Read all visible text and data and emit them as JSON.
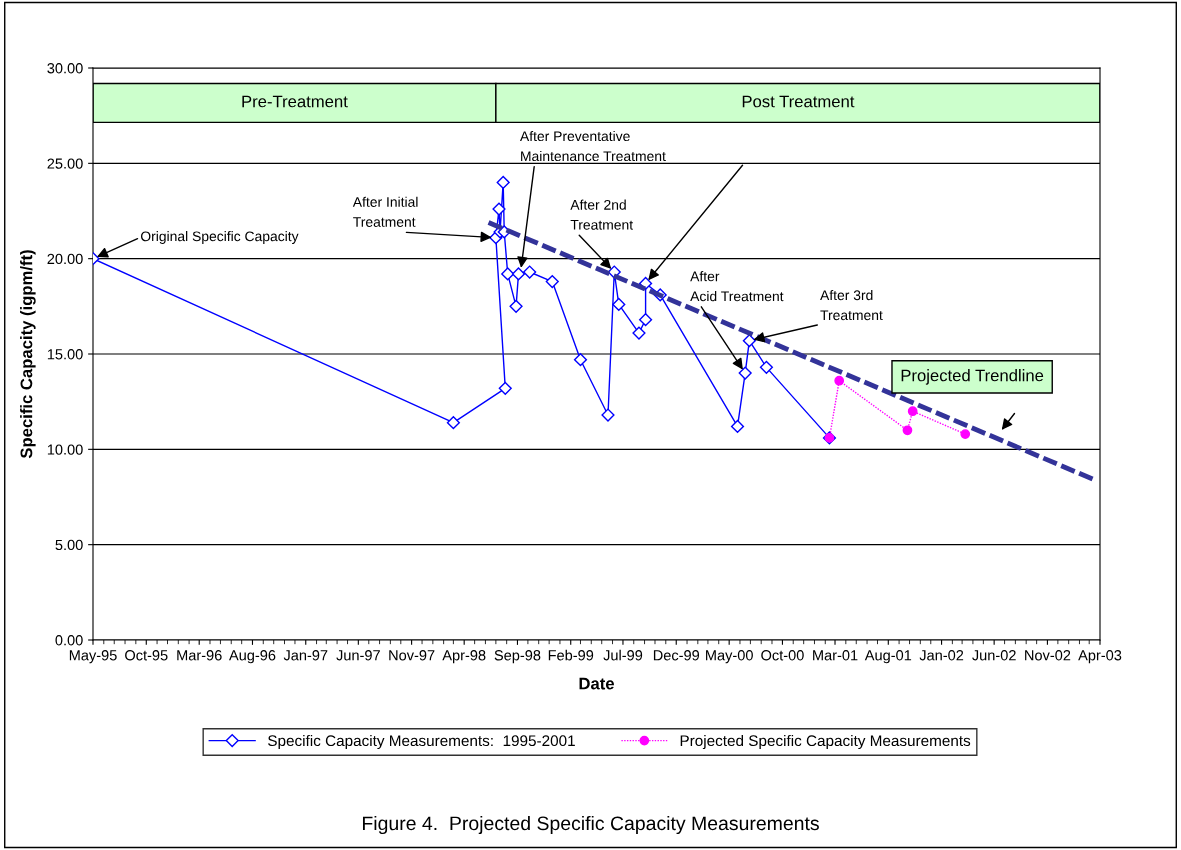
{
  "chart_data": {
    "type": "line",
    "xlabel": "Date",
    "ylabel": "Specific Capacity (igpm/ft)",
    "xlim": [
      "1995-05-01",
      "2003-04-01"
    ],
    "xticks": [
      {
        "value": "1995-05",
        "label": "May-95"
      },
      {
        "value": "1995-10",
        "label": "Oct-95"
      },
      {
        "value": "1996-03",
        "label": "Mar-96"
      },
      {
        "value": "1996-08",
        "label": "Aug-96"
      },
      {
        "value": "1997-01",
        "label": "Jan-97"
      },
      {
        "value": "1997-06",
        "label": "Jun-97"
      },
      {
        "value": "1997-11",
        "label": "Nov-97"
      },
      {
        "value": "1998-04",
        "label": "Apr-98"
      },
      {
        "value": "1998-09",
        "label": "Sep-98"
      },
      {
        "value": "1999-02",
        "label": "Feb-99"
      },
      {
        "value": "1999-07",
        "label": "Jul-99"
      },
      {
        "value": "1999-12",
        "label": "Dec-99"
      },
      {
        "value": "2000-05",
        "label": "May-00"
      },
      {
        "value": "2000-10",
        "label": "Oct-00"
      },
      {
        "value": "2001-03",
        "label": "Mar-01"
      },
      {
        "value": "2001-08",
        "label": "Aug-01"
      },
      {
        "value": "2002-01",
        "label": "Jan-02"
      },
      {
        "value": "2002-06",
        "label": "Jun-02"
      },
      {
        "value": "2002-11",
        "label": "Nov-02"
      },
      {
        "value": "2003-04",
        "label": "Apr-03"
      }
    ],
    "ylim": [
      0,
      30
    ],
    "yticks": [
      {
        "value": 0,
        "label": "0.00"
      },
      {
        "value": 5,
        "label": "5.00"
      },
      {
        "value": 10,
        "label": "10.00"
      },
      {
        "value": 15,
        "label": "15.00"
      },
      {
        "value": 20,
        "label": "20.00"
      },
      {
        "value": 25,
        "label": "25.00"
      },
      {
        "value": 30,
        "label": "30.00"
      }
    ],
    "grid": "y",
    "legend": "bottom",
    "series": [
      {
        "name": "Specific Capacity Measurements:  1995-2001",
        "color": "#0000ff",
        "marker": "diamond",
        "line_style": "solid",
        "x": [
          "1995-05-01",
          "1998-03-01",
          "1998-07-28",
          "1998-07-01",
          "1998-07-10",
          "1998-07-13",
          "1998-07-22",
          "1998-07-25",
          "1998-08-04",
          "1998-08-28",
          "1998-09-04",
          "1998-10-06",
          "1998-12-10",
          "1999-03-01",
          "1999-05-19",
          "1999-06-06",
          "1999-06-19",
          "1999-08-16",
          "1999-09-04",
          "1999-09-04",
          "1999-10-16",
          "2000-05-25",
          "2000-06-16",
          "2000-06-28",
          "2000-08-16",
          "2001-02-13"
        ],
        "values": [
          20.0,
          11.4,
          13.2,
          21.1,
          22.6,
          21.4,
          24.0,
          21.4,
          19.2,
          17.5,
          19.2,
          19.3,
          18.8,
          14.7,
          11.8,
          19.3,
          17.6,
          16.1,
          16.8,
          18.7,
          18.1,
          11.2,
          14.0,
          15.7,
          14.3,
          10.6
        ]
      },
      {
        "name": "Projected Specific Capacity Measurements",
        "color": "#ff00ff",
        "marker": "circle",
        "line_style": "dotted",
        "x": [
          "2001-02-13",
          "2001-03-13",
          "2001-09-25",
          "2001-10-10",
          "2002-03-10"
        ],
        "values": [
          10.6,
          13.6,
          11.0,
          12.0,
          10.8
        ]
      },
      {
        "type": "line",
        "color": "#333399",
        "marker": "none",
        "line_style": "dashed",
        "x": [
          "1998-06-10",
          "2003-03-16"
        ],
        "values": [
          21.9,
          8.4
        ]
      }
    ],
    "bands": [
      {
        "axis": "x",
        "from": "1995-05-01",
        "to": "1998-07-01",
        "label": "Pre-Treatment",
        "color": "#ccffcc"
      },
      {
        "axis": "x",
        "from": "1998-07-01",
        "to": "2003-04-01",
        "label": "Post Treatment",
        "color": "#ccffcc"
      }
    ],
    "annotations": [
      {
        "text": "Original Specific Capacity",
        "x": "1995-05-01",
        "y": 20.0
      },
      {
        "text": "After Initial\nTreatment",
        "x": "1998-07-01",
        "y": 21.1
      },
      {
        "text": "After Preventative\nMaintenance Treatment",
        "x": "1998-09-10",
        "y": 19.3
      },
      {
        "text": "After 2nd\nTreatment",
        "x": "1999-06-06",
        "y": 19.3
      },
      {
        "text": "After\nAcid Treatment",
        "x": "2000-06-16",
        "y": 14.0
      },
      {
        "text": "After 3rd\nTreatment",
        "x": "2000-06-28",
        "y": 15.7
      },
      {
        "text": "Projected Trendline",
        "x": "2002-06-18",
        "y": 10.9
      },
      "Figure 4.  Projected Specific Capacity Measurements"
    ]
  }
}
